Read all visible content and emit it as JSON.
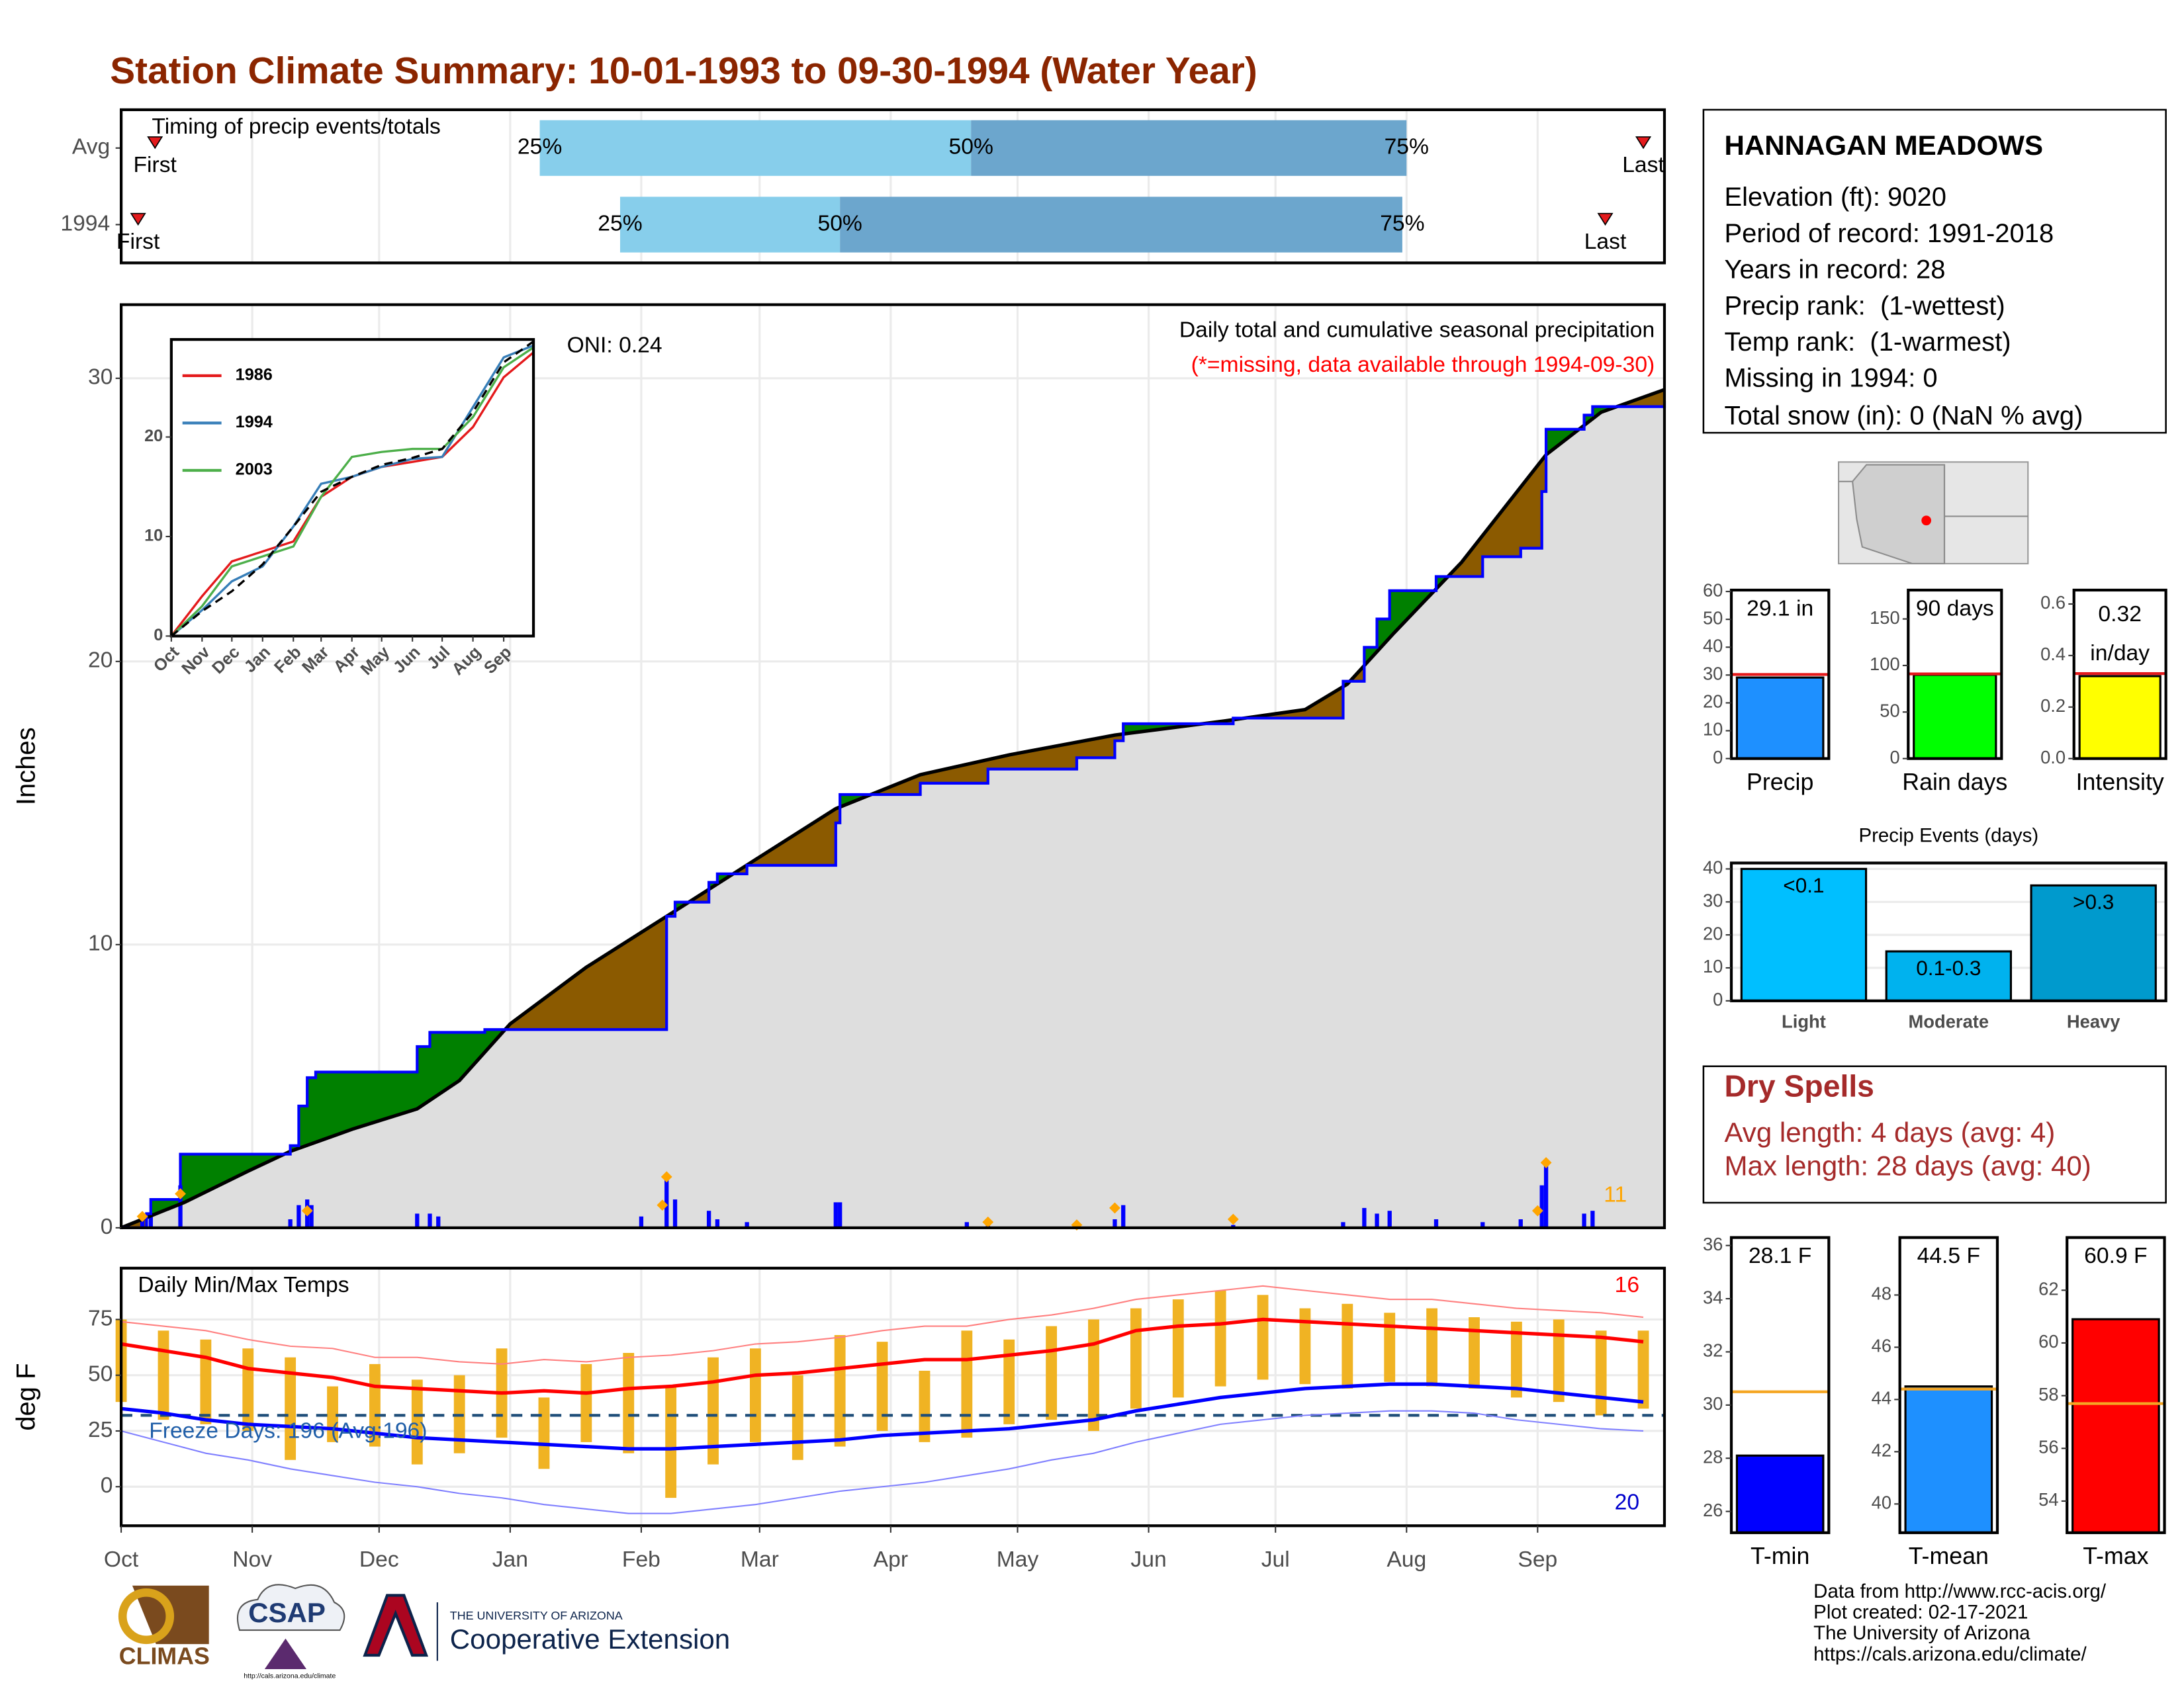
{
  "title": "Station Climate Summary: 10-01-1993 to 09-30-1994 (Water Year)",
  "chart_data": [
    {
      "type": "timing",
      "title": "Timing of precip events/totals",
      "xlim": [
        0,
        365
      ],
      "xticks": [
        0,
        31,
        61,
        92,
        123,
        151,
        182,
        212,
        243,
        273,
        304,
        335
      ],
      "grid": true,
      "colors": [
        "#87ceeb",
        "#6ca6cd"
      ],
      "marker_color": "#e41a1c",
      "first_label": "First",
      "last_label": "Last",
      "quantile_labels": [
        "25%",
        "50%",
        "75%"
      ],
      "rows": [
        {
          "label": "Avg",
          "first": 8,
          "q25": 99,
          "q50": 201,
          "q75": 304,
          "last": 360
        },
        {
          "label": "1994",
          "first": 4,
          "q25": 118,
          "q50": 170,
          "q75": 303,
          "last": 351
        }
      ]
    },
    {
      "type": "cumulative",
      "ylabel": "Inches",
      "xlim": [
        0,
        365
      ],
      "ylim": [
        0,
        32.6
      ],
      "xticks": [
        0,
        31,
        61,
        92,
        123,
        151,
        182,
        212,
        243,
        273,
        304,
        335
      ],
      "yticks": [
        0,
        10,
        20,
        30
      ],
      "grid": true,
      "oni": "ONI: 0.24",
      "subtitle": "Daily total and cumulative seasonal precipitation",
      "note": "(*=missing, data available through 1994-09-30)",
      "record_count": 11,
      "above_color": "#008000",
      "below_color": "#8b5a00",
      "base_color": "#dedede",
      "series": [
        {
          "color": "#000000",
          "x": [
            0,
            15,
            30,
            40,
            55,
            70,
            80,
            92,
            110,
            129,
            150,
            169,
            189,
            210,
            235,
            261,
            280,
            290,
            301,
            317,
            337,
            350,
            365
          ],
          "values": [
            0,
            0.9,
            2.0,
            2.7,
            3.5,
            4.2,
            5.2,
            7.2,
            9.2,
            11.0,
            13.0,
            14.8,
            16.0,
            16.7,
            17.4,
            17.9,
            18.3,
            19.2,
            21.0,
            23.5,
            27.3,
            28.8,
            29.6
          ]
        },
        {
          "color": "#0000ff",
          "step": true,
          "x": [
            0,
            6,
            7,
            14,
            40,
            42,
            44,
            46,
            70,
            73,
            86,
            129,
            131,
            139,
            141,
            148,
            169,
            170,
            189,
            205,
            226,
            235,
            237,
            263,
            289,
            294,
            297,
            300,
            311,
            322,
            331,
            336,
            337,
            346,
            348,
            365
          ],
          "values": [
            0,
            0.5,
            1.0,
            2.6,
            2.9,
            4.3,
            5.3,
            5.5,
            6.4,
            6.9,
            7.0,
            11.0,
            11.5,
            12.2,
            12.5,
            12.8,
            14.3,
            15.3,
            15.7,
            16.2,
            16.6,
            17.2,
            17.8,
            18.0,
            19.3,
            20.5,
            21.5,
            22.5,
            23.0,
            23.7,
            24.0,
            26.0,
            28.2,
            28.7,
            29.0,
            29.2
          ]
        }
      ],
      "daily": {
        "color": "#0000ff",
        "x": [
          5,
          7,
          14,
          40,
          42,
          44,
          45,
          70,
          73,
          75,
          123,
          129,
          131,
          139,
          141,
          148,
          169,
          170,
          200,
          205,
          226,
          235,
          237,
          263,
          289,
          294,
          297,
          300,
          311,
          322,
          331,
          336,
          337,
          346,
          348
        ],
        "values": [
          0.3,
          0.5,
          1.5,
          0.3,
          0.8,
          1.0,
          0.8,
          0.5,
          0.5,
          0.4,
          0.4,
          1.8,
          1.0,
          0.6,
          0.3,
          0.2,
          0.9,
          0.9,
          0.2,
          0.2,
          0.1,
          0.3,
          0.8,
          0.1,
          0.2,
          0.7,
          0.5,
          0.6,
          0.3,
          0.2,
          0.3,
          1.5,
          2.2,
          0.5,
          0.6
        ]
      },
      "records": {
        "color": "#ffa500",
        "x": [
          5,
          14,
          44,
          128,
          129,
          205,
          226,
          235,
          263,
          335,
          337
        ],
        "values": [
          0.4,
          1.2,
          0.6,
          0.8,
          1.8,
          0.2,
          0.1,
          0.7,
          0.3,
          0.6,
          2.3
        ]
      }
    },
    {
      "type": "line",
      "xlim": [
        0,
        365
      ],
      "ylim": [
        0,
        29.8
      ],
      "yticks": [
        0,
        10,
        20
      ],
      "legend": "upper left",
      "xticks": [
        {
          "value": 0,
          "label": "Oct"
        },
        {
          "value": 31,
          "label": "Nov"
        },
        {
          "value": 61,
          "label": "Dec"
        },
        {
          "value": 92,
          "label": "Jan"
        },
        {
          "value": 123,
          "label": "Feb"
        },
        {
          "value": 151,
          "label": "Mar"
        },
        {
          "value": 182,
          "label": "Apr"
        },
        {
          "value": 212,
          "label": "May"
        },
        {
          "value": 243,
          "label": "Jun"
        },
        {
          "value": 273,
          "label": "Jul"
        },
        {
          "value": 304,
          "label": "Aug"
        },
        {
          "value": 335,
          "label": "Sep"
        }
      ],
      "x": [
        0,
        31,
        61,
        92,
        123,
        151,
        182,
        212,
        243,
        273,
        304,
        335,
        365
      ],
      "series": [
        {
          "name": "1986",
          "color": "#e41a1c",
          "values": [
            0,
            4,
            7.5,
            8.5,
            9.5,
            14,
            16,
            17,
            17.5,
            18,
            21,
            26,
            28.5
          ]
        },
        {
          "name": "1994",
          "color": "#377eb8",
          "values": [
            0,
            2.6,
            5.5,
            7,
            11,
            15.3,
            16,
            17,
            17.8,
            18,
            23,
            28,
            29.2
          ]
        },
        {
          "name": "2003",
          "color": "#4daf4a",
          "values": [
            0,
            3,
            7,
            8,
            9,
            14,
            18,
            18.5,
            18.8,
            18.8,
            22,
            27,
            29
          ]
        },
        {
          "color": "#000000",
          "dash": true,
          "values": [
            0,
            2.5,
            4.5,
            7.2,
            11,
            14.5,
            16,
            17.2,
            17.9,
            18.8,
            22.5,
            27.5,
            29.6
          ]
        }
      ]
    },
    {
      "type": "temperature",
      "title": "Daily Min/Max Temps",
      "ylabel": "deg F",
      "xlim": [
        0,
        365
      ],
      "ylim": [
        -17.5,
        98
      ],
      "grid": true,
      "yticks": [
        0,
        25,
        50,
        75
      ],
      "xticks": [
        {
          "value": 0,
          "label": "Oct"
        },
        {
          "value": 31,
          "label": "Nov"
        },
        {
          "value": 61,
          "label": "Dec"
        },
        {
          "value": 92,
          "label": "Jan"
        },
        {
          "value": 123,
          "label": "Feb"
        },
        {
          "value": 151,
          "label": "Mar"
        },
        {
          "value": 182,
          "label": "Apr"
        },
        {
          "value": 212,
          "label": "May"
        },
        {
          "value": 243,
          "label": "Jun"
        },
        {
          "value": 273,
          "label": "Jul"
        },
        {
          "value": 304,
          "label": "Aug"
        },
        {
          "value": 335,
          "label": "Sep"
        }
      ],
      "freeze_line": 32,
      "freeze_label": "Freeze Days: 196 (Avg:196)",
      "high_count": 16,
      "low_count": 20,
      "x": [
        0,
        10,
        20,
        30,
        40,
        50,
        60,
        70,
        80,
        90,
        100,
        110,
        120,
        130,
        140,
        150,
        160,
        170,
        180,
        190,
        200,
        210,
        220,
        230,
        240,
        250,
        260,
        270,
        280,
        290,
        300,
        310,
        320,
        330,
        340,
        350,
        360
      ],
      "bars": {
        "color": "#f0b323",
        "high": [
          75,
          70,
          66,
          62,
          58,
          45,
          55,
          48,
          50,
          62,
          40,
          55,
          60,
          45,
          58,
          62,
          50,
          68,
          65,
          52,
          70,
          66,
          72,
          75,
          80,
          84,
          88,
          86,
          80,
          82,
          78,
          80,
          76,
          74,
          75,
          70,
          70
        ],
        "low": [
          38,
          30,
          28,
          25,
          12,
          20,
          18,
          10,
          15,
          22,
          8,
          20,
          15,
          -5,
          10,
          20,
          12,
          18,
          25,
          20,
          22,
          28,
          30,
          25,
          35,
          40,
          45,
          48,
          46,
          44,
          47,
          45,
          44,
          40,
          38,
          32,
          35
        ]
      },
      "series": [
        {
          "color": "#ff0000",
          "values": [
            64,
            61,
            58,
            53,
            51,
            49,
            45,
            44,
            43,
            42,
            43,
            42,
            44,
            45,
            47,
            50,
            51,
            53,
            55,
            57,
            57,
            59,
            61,
            64,
            70,
            72,
            73,
            75,
            74,
            73,
            72,
            71,
            70,
            69,
            68,
            67,
            65
          ]
        },
        {
          "color": "#0000ff",
          "values": [
            35,
            33,
            30,
            28,
            27,
            26,
            24,
            22,
            21,
            20,
            19,
            18,
            17,
            17,
            18,
            19,
            20,
            21,
            23,
            24,
            25,
            26,
            28,
            30,
            34,
            37,
            40,
            42,
            44,
            45,
            46,
            46,
            45,
            44,
            42,
            40,
            38
          ]
        },
        {
          "color": "#ff8080",
          "thin": true,
          "values": [
            74,
            72,
            70,
            66,
            63,
            62,
            58,
            58,
            56,
            55,
            57,
            56,
            58,
            59,
            61,
            64,
            65,
            67,
            70,
            72,
            72,
            75,
            77,
            80,
            84,
            86,
            88,
            90,
            88,
            86,
            84,
            84,
            82,
            80,
            79,
            78,
            76
          ]
        },
        {
          "color": "#8080ff",
          "thin": true,
          "values": [
            25,
            20,
            15,
            12,
            8,
            5,
            2,
            0,
            -3,
            -5,
            -8,
            -10,
            -12,
            -12,
            -10,
            -8,
            -5,
            -2,
            0,
            2,
            5,
            8,
            12,
            15,
            20,
            24,
            28,
            30,
            32,
            33,
            34,
            34,
            33,
            30,
            28,
            26,
            25
          ]
        }
      ]
    },
    {
      "type": "summary_bar",
      "categories": [
        "Precip"
      ],
      "values": [
        29.1
      ],
      "value_labels": [
        "29.1 in"
      ],
      "avg": 30.2,
      "color": "#1e90ff",
      "avg_color": "#e41a1c",
      "ylim": [
        0,
        60.5
      ],
      "yticks": [
        0,
        10,
        20,
        30,
        40,
        50,
        60
      ]
    },
    {
      "type": "summary_bar",
      "categories": [
        "Rain days"
      ],
      "values": [
        90
      ],
      "value_labels": [
        "90 days"
      ],
      "avg": 91,
      "color": "#00ff00",
      "avg_color": "#e41a1c",
      "ylim": [
        0,
        181
      ],
      "yticks": [
        0,
        50,
        100,
        150
      ]
    },
    {
      "type": "summary_bar",
      "categories": [
        "Intensity"
      ],
      "values": [
        0.32
      ],
      "value_labels": [
        "0.32 in/day"
      ],
      "avg": 0.33,
      "color": "#ffff00",
      "avg_color": "#e41a1c",
      "ylim": [
        0,
        0.654
      ],
      "yticks": [
        {
          "value": 0,
          "label": "0.0"
        },
        0.2,
        0.4,
        0.6
      ]
    },
    {
      "type": "events",
      "title": "Precip Events (days)",
      "categories": [
        "Light",
        "Moderate",
        "Heavy"
      ],
      "values": [
        40,
        15,
        35
      ],
      "bar_labels": [
        "<0.1",
        "0.1-0.3",
        ">0.3"
      ],
      "colors": [
        "#00bfff",
        "#00b2ee",
        "#009acd"
      ],
      "ylim": [
        0,
        41.8
      ],
      "yticks": [
        0,
        10,
        20,
        30,
        40
      ],
      "grid": true
    },
    {
      "type": "summary_bar",
      "categories": [
        "T-min"
      ],
      "values": [
        28.1
      ],
      "value_labels": [
        "28.1 F"
      ],
      "avg": 30.5,
      "color": "#0000ff",
      "avg_color": "#f5a623",
      "ylim": [
        25.2,
        36.3
      ],
      "yticks": [
        26,
        28,
        30,
        32,
        34,
        36
      ]
    },
    {
      "type": "summary_bar",
      "categories": [
        "T-mean"
      ],
      "values": [
        44.5
      ],
      "value_labels": [
        "44.5 F"
      ],
      "avg": 44.4,
      "color": "#1e90ff",
      "avg_color": "#f5a623",
      "ylim": [
        38.9,
        50.2
      ],
      "yticks": [
        40,
        42,
        44,
        46,
        48
      ]
    },
    {
      "type": "summary_bar",
      "categories": [
        "T-max"
      ],
      "values": [
        60.9
      ],
      "value_labels": [
        "60.9 F"
      ],
      "avg": 57.7,
      "color": "#ff0000",
      "avg_color": "#f5a623",
      "ylim": [
        52.8,
        64
      ],
      "yticks": [
        54,
        56,
        58,
        60,
        62
      ]
    }
  ],
  "info": {
    "title": "HANNAGAN MEADOWS",
    "lines": [
      "Elevation (ft): 9020",
      "Period of record: 1991-2018",
      "Years in record: 28",
      "Precip rank:  (1-wettest)",
      "Temp rank:  (1-warmest)",
      "Missing in 1994: 0",
      "Total snow (in): 0 (NaN % avg)"
    ]
  },
  "dry_spells": {
    "title": "Dry Spells",
    "lines": [
      "Avg length: 4 days (avg: 4)",
      "Max length: 28 days (avg: 40)"
    ]
  },
  "footer": {
    "source": [
      "Data from http://www.rcc-acis.org/",
      "Plot created: 02-17-2021",
      "The University of Arizona",
      "https://cals.arizona.edu/climate/"
    ],
    "logos": [
      "CLIMAS",
      "CSAP",
      "http://cals.arizona.edu/climate",
      "THE UNIVERSITY OF ARIZONA",
      "Cooperative Extension"
    ]
  }
}
